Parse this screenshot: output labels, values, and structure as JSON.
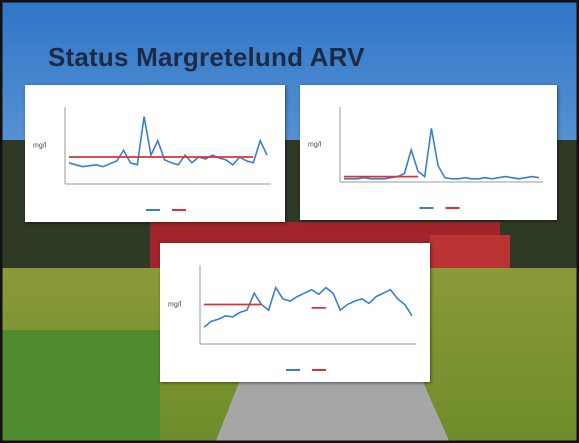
{
  "title": "Status Margretelund ARV",
  "chart_data": [
    {
      "type": "line",
      "ylabel": "mg/l",
      "ylim": [
        0,
        80
      ],
      "series": [
        {
          "color": "#3a7fcf",
          "values": [
            22,
            20,
            18,
            19,
            20,
            18,
            21,
            24,
            35,
            22,
            20,
            70,
            30,
            45,
            25,
            22,
            20,
            30,
            22,
            28,
            26,
            30,
            27,
            25,
            20,
            28,
            24,
            22,
            45,
            30
          ]
        },
        {
          "color": "#e03030",
          "values": [
            28,
            28,
            28,
            28,
            28,
            28,
            28,
            28,
            28,
            28,
            28,
            28,
            28,
            28,
            28,
            28,
            28,
            28,
            28,
            28,
            28,
            28,
            28,
            28,
            28,
            28,
            28,
            28,
            null,
            null
          ]
        }
      ]
    },
    {
      "type": "line",
      "ylabel": "mg/l",
      "ylim": [
        0,
        70
      ],
      "series": [
        {
          "color": "#3a7fcf",
          "values": [
            3,
            3,
            3,
            4,
            3,
            3,
            3,
            4,
            5,
            8,
            30,
            10,
            5,
            50,
            15,
            4,
            3,
            3,
            4,
            3,
            3,
            4,
            3,
            4,
            5,
            4,
            3,
            4,
            5,
            4
          ]
        },
        {
          "color": "#e03030",
          "values": [
            5,
            5,
            5,
            5,
            5,
            5,
            5,
            5,
            5,
            5,
            5,
            5,
            null,
            null,
            null,
            null,
            null,
            null,
            null,
            null,
            null,
            null,
            null,
            null,
            null,
            null,
            null,
            null,
            null,
            null
          ]
        }
      ]
    },
    {
      "type": "line",
      "ylabel": "mg/l",
      "ylim": [
        0,
        70
      ],
      "series": [
        {
          "color": "#3a7fcf",
          "values": [
            15,
            20,
            22,
            25,
            24,
            28,
            30,
            45,
            35,
            30,
            50,
            40,
            38,
            42,
            45,
            48,
            44,
            50,
            45,
            30,
            35,
            38,
            40,
            36,
            42,
            45,
            48,
            40,
            35,
            25
          ]
        },
        {
          "color": "#e03030",
          "values": [
            35,
            35,
            35,
            35,
            35,
            35,
            35,
            35,
            35,
            null,
            null,
            null,
            null,
            null,
            null,
            32,
            32,
            32,
            null,
            null,
            null,
            null,
            null,
            null,
            null,
            null,
            null,
            null,
            null,
            null
          ]
        }
      ]
    }
  ]
}
